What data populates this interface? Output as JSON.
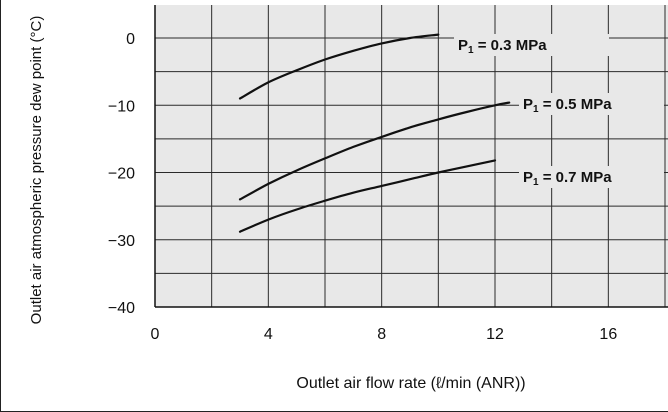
{
  "chart_data": {
    "type": "line",
    "xlabel": "Outlet air flow rate (ℓ/min (ANR))",
    "ylabel": "Outlet air atmospheric pressure dew point (°C)",
    "xlim": [
      0,
      18
    ],
    "ylim": [
      -40,
      5
    ],
    "x_ticks": [
      "0",
      "4",
      "8",
      "12",
      "16"
    ],
    "y_ticks": [
      "0",
      "−10",
      "−20",
      "−30",
      "−40"
    ],
    "grid": true,
    "plot_background": "#e8e8e8",
    "series": [
      {
        "name": "P1 = 0.3 MPa",
        "label_main": "P",
        "label_sub": "1",
        "label_rest": " = 0.3 MPa",
        "x": [
          3,
          4,
          5,
          6,
          7,
          8,
          9,
          10
        ],
        "y": [
          -9,
          -6.6,
          -4.8,
          -3.2,
          -1.9,
          -0.8,
          0,
          0.5
        ]
      },
      {
        "name": "P1 = 0.5 MPa",
        "label_main": "P",
        "label_sub": "1",
        "label_rest": " = 0.5 MPa",
        "x": [
          3,
          4,
          5,
          6,
          7,
          8,
          9,
          10,
          11,
          12,
          12.5
        ],
        "y": [
          -24,
          -21.7,
          -19.7,
          -17.9,
          -16.2,
          -14.7,
          -13.3,
          -12.1,
          -11,
          -10,
          -9.6
        ]
      },
      {
        "name": "P1 = 0.7 MPa",
        "label_main": "P",
        "label_sub": "1",
        "label_rest": " = 0.7 MPa",
        "x": [
          3,
          4,
          5,
          6,
          7,
          8,
          9,
          10,
          11,
          12
        ],
        "y": [
          -28.8,
          -27,
          -25.5,
          -24.2,
          -23,
          -22,
          -21,
          -20,
          -19.1,
          -18.2
        ]
      }
    ]
  }
}
